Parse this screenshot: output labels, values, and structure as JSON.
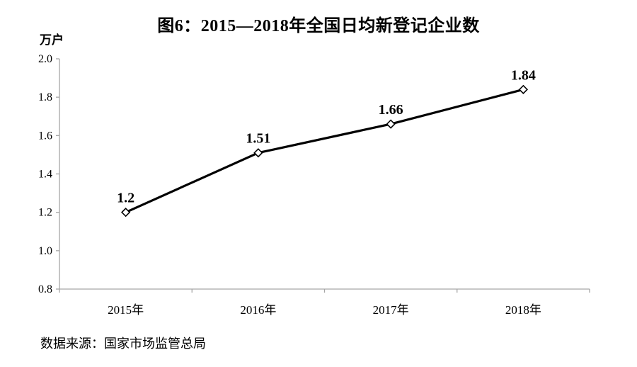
{
  "chart_data": {
    "type": "line",
    "title": "图6：2015—2018年全国日均新登记企业数",
    "unit_label": "万户",
    "xlabel": "",
    "ylabel": "万户",
    "categories": [
      "2015年",
      "2016年",
      "2017年",
      "2018年"
    ],
    "series": [
      {
        "name": "全国日均新登记企业数",
        "values": [
          1.2,
          1.51,
          1.66,
          1.84
        ],
        "point_labels": [
          "1.2",
          "1.51",
          "1.66",
          "1.84"
        ]
      }
    ],
    "ylim": [
      0.8,
      2.0
    ],
    "ytick_step": 0.2,
    "ytick_labels": [
      "0.8",
      "1.0",
      "1.2",
      "1.4",
      "1.6",
      "1.8",
      "2.0"
    ],
    "grid": "off",
    "legend": "none",
    "source": "数据来源：国家市场监管总局",
    "colors": {
      "line": "#000000",
      "marker_fill": "#ffffff",
      "marker_stroke": "#000000",
      "axis": "#a6a6a6",
      "text": "#000000",
      "background": "#ffffff"
    }
  }
}
